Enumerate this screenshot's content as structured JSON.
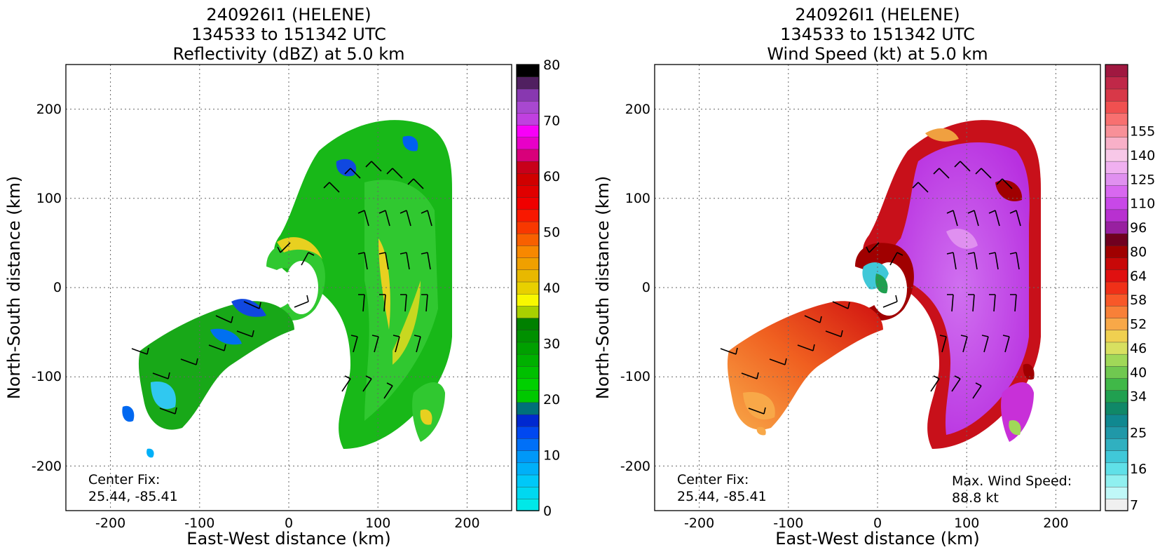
{
  "chart_data": [
    {
      "type": "heatmap",
      "title_lines": [
        "240926I1 (HELENE)",
        "134533 to 151342 UTC",
        "Reflectivity (dBZ) at 5.0 km"
      ],
      "xlabel": "East-West distance (km)",
      "ylabel": "North-South distance (km)",
      "xlim": [
        -250,
        250
      ],
      "ylim": [
        -250,
        250
      ],
      "xticks": [
        -200,
        -100,
        0,
        100,
        200
      ],
      "yticks": [
        -200,
        -100,
        0,
        100,
        200
      ],
      "grid": true,
      "colorbar": {
        "min": 0,
        "max": 80,
        "tick_values": [
          0,
          10,
          20,
          30,
          40,
          50,
          60,
          70,
          80
        ],
        "tick_labels": [
          "0",
          "10",
          "20",
          "30",
          "40",
          "50",
          "60",
          "70",
          "80"
        ],
        "colors": [
          "#00e8e8",
          "#00d8f0",
          "#00c8f8",
          "#00b0f8",
          "#0098f8",
          "#0070f8",
          "#0048f0",
          "#0028d0",
          "#00707a",
          "#00c800",
          "#00d000",
          "#00c000",
          "#00b000",
          "#00a000",
          "#009000",
          "#008000",
          "#a8d000",
          "#f8f800",
          "#e8d000",
          "#e8b800",
          "#f0a000",
          "#f88800",
          "#f86000",
          "#f83800",
          "#f81800",
          "#f00000",
          "#e00000",
          "#d00000",
          "#c8001a",
          "#d8007a",
          "#e800c8",
          "#f800f8",
          "#c040e0",
          "#a848d0",
          "#8838b0",
          "#502060",
          "#000000"
        ]
      },
      "annotation_center": [
        "Center Fix:",
        "25.44, -85.41"
      ]
    },
    {
      "type": "heatmap",
      "title_lines": [
        "240926I1 (HELENE)",
        "134533 to 151342 UTC",
        "Wind Speed (kt) at 5.0 km"
      ],
      "xlabel": "East-West distance (km)",
      "ylabel": "North-South distance (km)",
      "xlim": [
        -250,
        250
      ],
      "ylim": [
        -250,
        250
      ],
      "xticks": [
        -200,
        -100,
        0,
        100,
        200
      ],
      "yticks": [
        -200,
        -100,
        0,
        100,
        200
      ],
      "grid": true,
      "colorbar": {
        "tick_labels": [
          "7",
          "16",
          "25",
          "34",
          "40",
          "46",
          "52",
          "58",
          "64",
          "80",
          "96",
          "110",
          "125",
          "140",
          "155"
        ],
        "tick_levels": [
          0,
          3,
          6,
          9,
          11,
          13,
          15,
          17,
          19,
          21,
          23,
          25,
          27,
          29,
          31
        ],
        "colors": [
          "#f0f0f0",
          "#c0f8f8",
          "#90f0f0",
          "#60e0e8",
          "#40c8d8",
          "#30b0c0",
          "#2098a8",
          "#108890",
          "#108868",
          "#20a050",
          "#40b848",
          "#70c850",
          "#a0d858",
          "#d8e060",
          "#f0d050",
          "#f8a848",
          "#f88038",
          "#f85828",
          "#f03018",
          "#e01010",
          "#c80808",
          "#a00000",
          "#700020",
          "#9820a0",
          "#b830d0",
          "#c848e8",
          "#d868f0",
          "#e090f0",
          "#f0b0f0",
          "#f8c8e8",
          "#f8b0c8",
          "#f89098",
          "#f87070",
          "#f05050",
          "#d83848",
          "#c02848",
          "#a01840"
        ]
      },
      "annotation_center": [
        "Center Fix:",
        "25.44, -85.41"
      ],
      "annotation_max": [
        "Max. Wind Speed:",
        "88.8 kt"
      ],
      "max_wind_speed_kt": 88.8
    }
  ]
}
